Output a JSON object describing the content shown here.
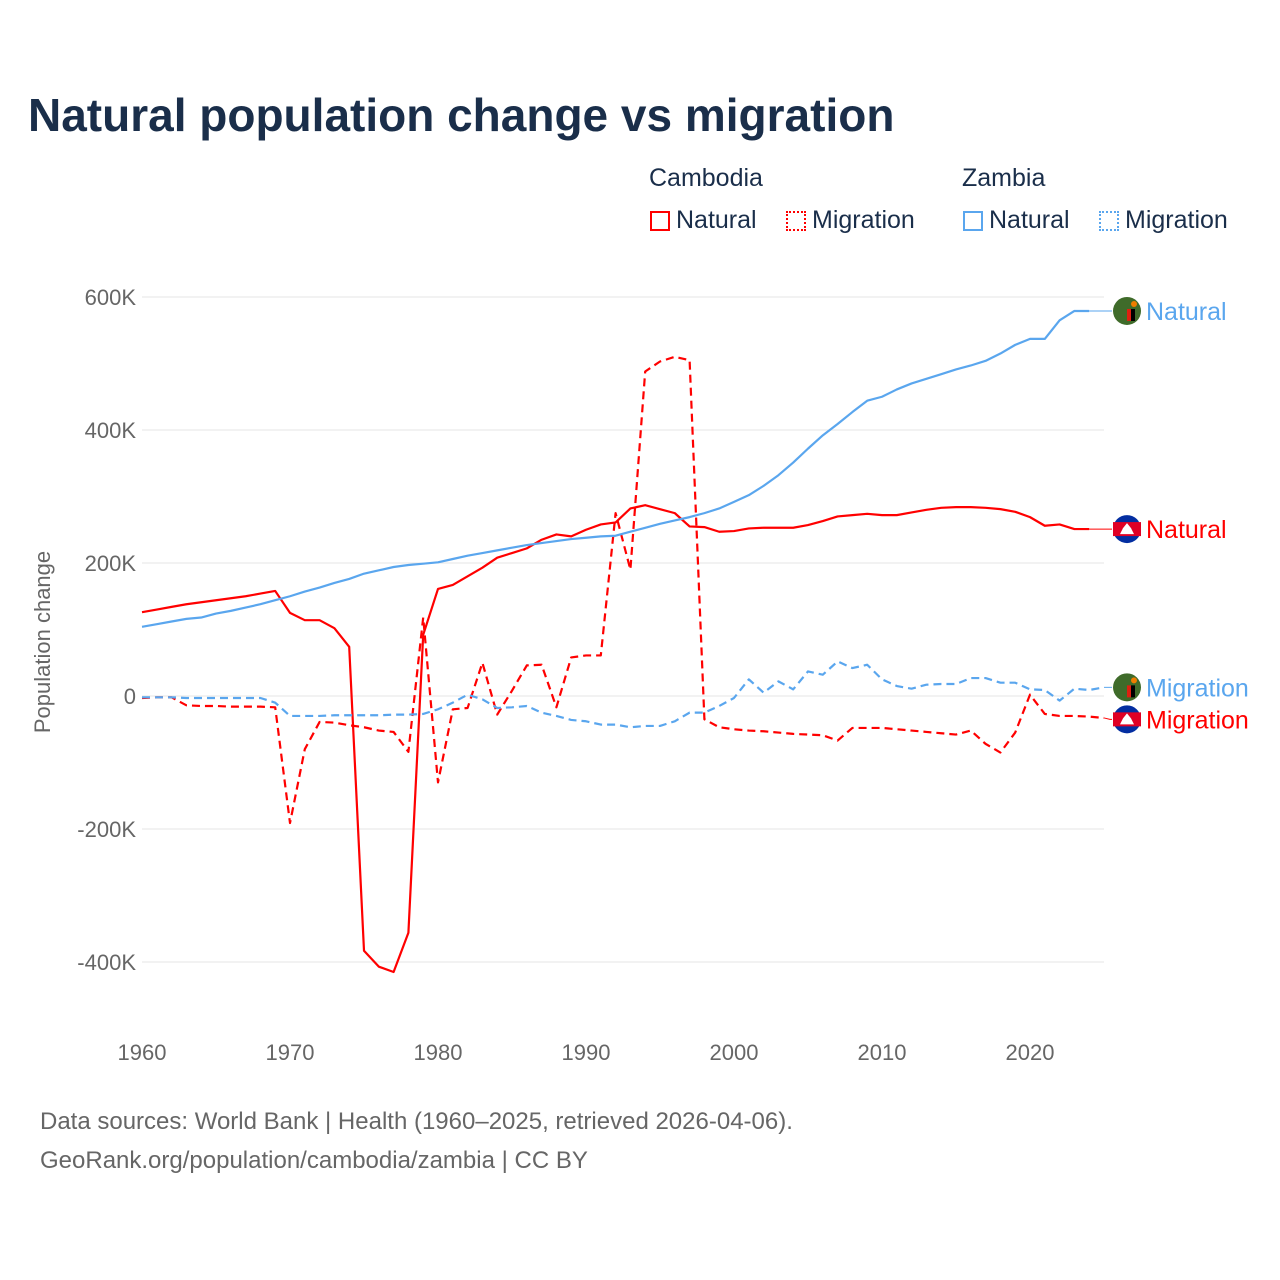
{
  "title": "Natural population change vs migration",
  "legend": {
    "groups": [
      {
        "name": "Cambodia",
        "items": [
          "Natural",
          "Migration"
        ],
        "color": "#ff0000"
      },
      {
        "name": "Zambia",
        "items": [
          "Natural",
          "Migration"
        ],
        "color": "#5aa6ee"
      }
    ]
  },
  "source_lines": [
    "Data sources: World Bank | Health (1960–2025, retrieved 2026-04-06).",
    "GeoRank.org/population/cambodia/zambia | CC BY"
  ],
  "chart_data": {
    "type": "line",
    "title": "Natural population change vs migration",
    "xlabel": "",
    "ylabel": "Population change",
    "xlim": [
      1960,
      2025
    ],
    "ylim": [
      -480000,
      600000
    ],
    "xticks": [
      1960,
      1970,
      1980,
      1990,
      2000,
      2010,
      2020
    ],
    "xtick_labels": [
      "1960",
      "1970",
      "1980",
      "1990",
      "2000",
      "2010",
      "2020"
    ],
    "yticks": [
      600000,
      400000,
      200000,
      0,
      -200000,
      -400000
    ],
    "ytick_labels": [
      "600K",
      "400K",
      "200K",
      "0",
      "-200K",
      "-400K"
    ],
    "grid": true,
    "x_start": 1960,
    "series": [
      {
        "name": "Cambodia Natural",
        "end_label": "Natural",
        "color": "#ff0000",
        "dash": false,
        "flag": "cambodia",
        "values": [
          126,
          130,
          134,
          138,
          141,
          144,
          147,
          150,
          154,
          158,
          125,
          114,
          114,
          102,
          74,
          -383,
          -407,
          -415,
          -356,
          92,
          161,
          167,
          180,
          193,
          208,
          215,
          222,
          235,
          243,
          240,
          250,
          258,
          261,
          282,
          287,
          281,
          275,
          255,
          254,
          247,
          248,
          252,
          253,
          253,
          253,
          257,
          263,
          270,
          272,
          274,
          272,
          272,
          276,
          280,
          283,
          284,
          284,
          283,
          281,
          277,
          269,
          256,
          258,
          251,
          251
        ]
      },
      {
        "name": "Cambodia Migration",
        "end_label": "Migration",
        "color": "#ff0000",
        "dash": true,
        "flag": "cambodia",
        "values": [
          -3,
          -2,
          -2,
          -14,
          -15,
          -15,
          -16,
          -16,
          -16,
          -17,
          -191,
          -80,
          -39,
          -40,
          -44,
          -47,
          -52,
          -54,
          -84,
          118,
          -130,
          -20,
          -18,
          50,
          -28,
          8,
          46,
          47,
          -17,
          58,
          61,
          61,
          275,
          190,
          488,
          503,
          510,
          505,
          -35,
          -47,
          -50,
          -52,
          -53,
          -55,
          -57,
          -58,
          -59,
          -67,
          -48,
          -48,
          -48,
          -50,
          -52,
          -54,
          -56,
          -58,
          -52,
          -72,
          -85,
          -55,
          2,
          -27,
          -30,
          -30,
          -31,
          -33
        ]
      },
      {
        "name": "Zambia Natural",
        "end_label": "Natural",
        "color": "#5aa6ee",
        "dash": false,
        "flag": "zambia",
        "values": [
          104,
          108,
          112,
          116,
          118,
          124,
          128,
          133,
          138,
          144,
          150,
          157,
          163,
          170,
          176,
          184,
          189,
          194,
          197,
          199,
          201,
          206,
          211,
          215,
          219,
          223,
          227,
          230,
          233,
          236,
          238,
          240,
          241,
          247,
          253,
          259,
          264,
          269,
          275,
          282,
          292,
          302,
          316,
          332,
          351,
          372,
          392,
          409,
          427,
          444,
          450,
          461,
          470,
          477,
          484,
          491,
          497,
          504,
          515,
          528,
          537,
          537,
          565,
          579,
          579
        ]
      },
      {
        "name": "Zambia Migration",
        "end_label": "Migration",
        "color": "#5aa6ee",
        "dash": true,
        "flag": "zambia",
        "values": [
          -2,
          -2,
          -2,
          -3,
          -3,
          -3,
          -3,
          -3,
          -3,
          -10,
          -30,
          -30,
          -30,
          -29,
          -29,
          -29,
          -29,
          -28,
          -28,
          -27,
          -20,
          -10,
          2,
          -5,
          -18,
          -17,
          -15,
          -25,
          -30,
          -36,
          -38,
          -43,
          -43,
          -47,
          -45,
          -45,
          -38,
          -25,
          -25,
          -15,
          -3,
          25,
          5,
          22,
          10,
          37,
          32,
          52,
          42,
          47,
          25,
          15,
          11,
          17,
          18,
          18,
          27,
          27,
          20,
          20,
          10,
          9,
          -7,
          11,
          9,
          13
        ]
      }
    ],
    "value_unit": "thousands"
  }
}
